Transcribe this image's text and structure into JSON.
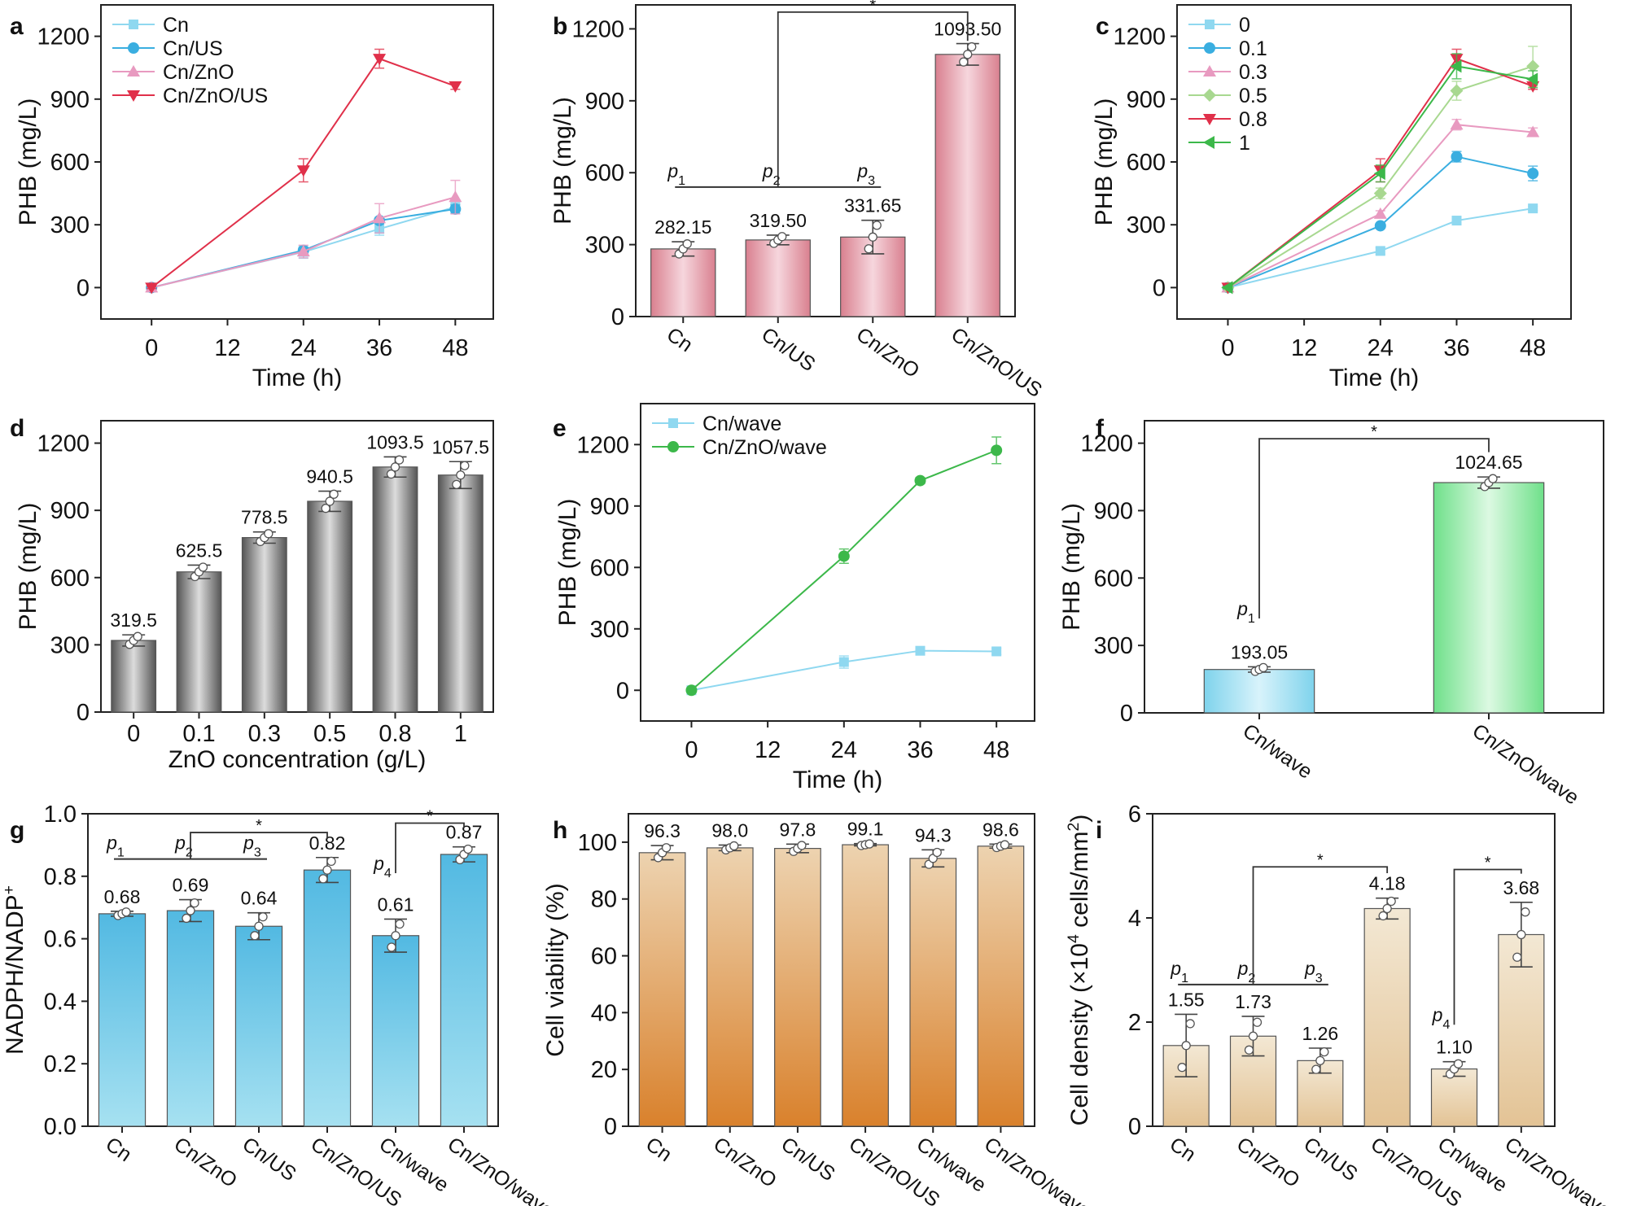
{
  "chart_data": [
    {
      "panel": "a",
      "type": "line",
      "xlabel": "Time (h)",
      "ylabel": "PHB (mg/L)",
      "xlim": [
        -8,
        54
      ],
      "ylim": [
        -150,
        1350
      ],
      "xticks": [
        0,
        12,
        24,
        36,
        48
      ],
      "yticks": [
        0,
        300,
        600,
        900,
        1200
      ],
      "legend_position": "top-left",
      "x": [
        0,
        24,
        36,
        48
      ],
      "series": [
        {
          "name": "Cn",
          "values": [
            0,
            170,
            280,
            385
          ],
          "errors": [
            5,
            30,
            30,
            20
          ],
          "color": "#8fd8f0",
          "marker": "square"
        },
        {
          "name": "Cn/US",
          "values": [
            0,
            178,
            320,
            375
          ],
          "errors": [
            5,
            15,
            15,
            20
          ],
          "color": "#3aaee0",
          "marker": "circle"
        },
        {
          "name": "Cn/ZnO",
          "values": [
            0,
            172,
            331,
            432
          ],
          "errors": [
            5,
            30,
            70,
            80
          ],
          "color": "#e89ac0",
          "marker": "triangle-up"
        },
        {
          "name": "Cn/ZnO/US",
          "values": [
            0,
            560,
            1093,
            962
          ],
          "errors": [
            5,
            55,
            45,
            15
          ],
          "color": "#e0304a",
          "marker": "triangle-down"
        }
      ]
    },
    {
      "panel": "b",
      "type": "bar",
      "xlabel": "",
      "ylabel": "PHB (mg/L)",
      "ylim": [
        0,
        1300
      ],
      "yticks": [
        0,
        300,
        600,
        900,
        1200
      ],
      "categories": [
        "Cn",
        "Cn/US",
        "Cn/ZnO",
        "Cn/ZnO/US"
      ],
      "values": [
        282.15,
        319.5,
        331.65,
        1093.5
      ],
      "errors": [
        30,
        20,
        70,
        45
      ],
      "data_labels": [
        "282.15",
        "319.50",
        "331.65",
        "1093.50"
      ],
      "rotate_labels": true,
      "fill": {
        "edge": "#d9808f",
        "center": "#f6d6dd",
        "direction": "horizontal"
      },
      "p_line": {
        "from": 0,
        "to": 2,
        "y": 540,
        "labels": [
          "p1",
          "p2",
          "p3"
        ]
      },
      "brackets": [
        {
          "from": 1,
          "to": 3,
          "y": 1270,
          "left_to": 540,
          "right_to": 1150,
          "label": "*"
        }
      ]
    },
    {
      "panel": "c",
      "type": "line",
      "xlabel": "Time (h)",
      "ylabel": "PHB (mg/L)",
      "xlim": [
        -8,
        54
      ],
      "ylim": [
        -150,
        1350
      ],
      "xticks": [
        0,
        12,
        24,
        36,
        48
      ],
      "yticks": [
        0,
        300,
        600,
        900,
        1200
      ],
      "legend_position": "top-left",
      "x": [
        0,
        24,
        36,
        48
      ],
      "series": [
        {
          "name": "0",
          "values": [
            0,
            175,
            320,
            378
          ],
          "errors": [
            5,
            15,
            10,
            10
          ],
          "color": "#8fd8f0",
          "marker": "square"
        },
        {
          "name": "0.1",
          "values": [
            0,
            295,
            625,
            545
          ],
          "errors": [
            5,
            10,
            25,
            35
          ],
          "color": "#3aaee0",
          "marker": "circle"
        },
        {
          "name": "0.3",
          "values": [
            0,
            352,
            778,
            742
          ],
          "errors": [
            5,
            15,
            25,
            20
          ],
          "color": "#e89ac0",
          "marker": "triangle-up"
        },
        {
          "name": "0.5",
          "values": [
            0,
            450,
            940,
            1057
          ],
          "errors": [
            5,
            25,
            45,
            95
          ],
          "color": "#a8d890",
          "marker": "diamond"
        },
        {
          "name": "0.8",
          "values": [
            0,
            560,
            1093,
            962
          ],
          "errors": [
            5,
            55,
            45,
            15
          ],
          "color": "#e0304a",
          "marker": "triangle-down"
        },
        {
          "name": "1",
          "values": [
            0,
            545,
            1057,
            995
          ],
          "errors": [
            5,
            40,
            60,
            40
          ],
          "color": "#3cb84a",
          "marker": "triangle-left"
        }
      ]
    },
    {
      "panel": "d",
      "type": "bar",
      "xlabel": "ZnO concentration (g/L)",
      "ylabel": "PHB (mg/L)",
      "ylim": [
        0,
        1300
      ],
      "yticks": [
        0,
        300,
        600,
        900,
        1200
      ],
      "categories": [
        "0",
        "0.1",
        "0.3",
        "0.5",
        "0.8",
        "1"
      ],
      "values": [
        319.5,
        625.5,
        778.5,
        940.5,
        1093.5,
        1057.5
      ],
      "errors": [
        25,
        30,
        25,
        45,
        45,
        60
      ],
      "data_labels": [
        "319.5",
        "625.5",
        "778.5",
        "940.5",
        "1093.5",
        "1057.5"
      ],
      "rotate_labels": false,
      "fill": {
        "edge": "#555555",
        "center": "#dcdcdc",
        "direction": "horizontal"
      }
    },
    {
      "panel": "e",
      "type": "line",
      "xlabel": "Time (h)",
      "ylabel": "PHB (mg/L)",
      "xlim": [
        -8,
        54
      ],
      "ylim": [
        -150,
        1400
      ],
      "xticks": [
        0,
        12,
        24,
        36,
        48
      ],
      "yticks": [
        0,
        300,
        600,
        900,
        1200
      ],
      "legend_position": "top-left",
      "x": [
        0,
        24,
        36,
        48
      ],
      "series": [
        {
          "name": "Cn/wave",
          "values": [
            0,
            138,
            193,
            190
          ],
          "errors": [
            5,
            30,
            8,
            15
          ],
          "color": "#8fd8f0",
          "marker": "square"
        },
        {
          "name": "Cn/ZnO/wave",
          "values": [
            0,
            655,
            1024,
            1172
          ],
          "errors": [
            5,
            35,
            15,
            65
          ],
          "color": "#3cb84a",
          "marker": "circle"
        }
      ]
    },
    {
      "panel": "f",
      "type": "bar",
      "xlabel": "",
      "ylabel": "PHB (mg/L)",
      "ylim": [
        0,
        1300
      ],
      "yticks": [
        0,
        300,
        600,
        900,
        1200
      ],
      "categories": [
        "Cn/wave",
        "Cn/ZnO/wave"
      ],
      "values": [
        193.05,
        1024.65
      ],
      "errors": [
        12,
        25
      ],
      "data_labels": [
        "193.05",
        "1024.65"
      ],
      "rotate_labels": true,
      "bar_fills": [
        {
          "edge": "#7fd3ec",
          "center": "#d8f3fb",
          "direction": "horizontal"
        },
        {
          "edge": "#6fe08a",
          "center": "#dcf9e2",
          "direction": "horizontal"
        }
      ],
      "brackets": [
        {
          "from": 0,
          "to": 1,
          "y": 1220,
          "left_to": 420,
          "right_to": 1160,
          "label": "*",
          "p_label": "p1"
        }
      ]
    },
    {
      "panel": "g",
      "type": "bar",
      "xlabel": "",
      "ylabel": "NADPH/NADP^{+}",
      "ylim": [
        0,
        1.0
      ],
      "yticks": [
        0,
        0.2,
        0.4,
        0.6,
        0.8,
        1.0
      ],
      "ytick_decimals": 1,
      "categories": [
        "Cn",
        "Cn/ZnO",
        "Cn/US",
        "Cn/ZnO/US",
        "Cn/wave",
        "Cn/ZnO/wave"
      ],
      "values": [
        0.68,
        0.69,
        0.64,
        0.82,
        0.61,
        0.87
      ],
      "errors": [
        0.008,
        0.035,
        0.043,
        0.04,
        0.053,
        0.024
      ],
      "data_labels": [
        "0.68",
        "0.69",
        "0.64",
        "0.82",
        "0.61",
        "0.87"
      ],
      "rotate_labels": true,
      "fill": {
        "top": "#52b9e2",
        "bottom": "#a6e1f1",
        "direction": "vertical"
      },
      "p_line": {
        "from": 0,
        "to": 2,
        "y": 0.855,
        "labels": [
          "p1",
          "p2",
          "p3"
        ]
      },
      "brackets": [
        {
          "from": 1,
          "to": 3,
          "y": 0.94,
          "left_to": 0.855,
          "right_to": 0.92,
          "label": "*"
        },
        {
          "from": 4,
          "to": 5,
          "y": 0.97,
          "left_to": 0.81,
          "right_to": 0.955,
          "label": "*",
          "p_label": "p4"
        }
      ]
    },
    {
      "panel": "h",
      "type": "bar",
      "xlabel": "",
      "ylabel": "Cell viability (%)",
      "ylim": [
        0,
        110
      ],
      "yticks": [
        0,
        20,
        40,
        60,
        80,
        100
      ],
      "categories": [
        "Cn",
        "Cn/ZnO",
        "Cn/US",
        "Cn/ZnO/US",
        "Cn/wave",
        "Cn/ZnO/wave"
      ],
      "values": [
        96.3,
        98.0,
        97.8,
        99.1,
        94.3,
        98.6
      ],
      "errors": [
        2.5,
        1.0,
        1.5,
        0.4,
        3.0,
        0.7
      ],
      "data_labels": [
        "96.3",
        "98.0",
        "97.8",
        "99.1",
        "94.3",
        "98.6"
      ],
      "rotate_labels": true,
      "fill": {
        "top": "#edd3b0",
        "bottom": "#d9812c",
        "direction": "vertical"
      }
    },
    {
      "panel": "i",
      "type": "bar",
      "xlabel": "",
      "ylabel": "Cell density (×10^{4} cells/mm^{2})",
      "ylim": [
        0,
        6
      ],
      "yticks": [
        0,
        2,
        4,
        6
      ],
      "categories": [
        "Cn",
        "Cn/ZnO",
        "Cn/US",
        "Cn/ZnO/US",
        "Cn/wave",
        "Cn/ZnO/wave"
      ],
      "values": [
        1.55,
        1.73,
        1.26,
        4.18,
        1.1,
        3.68
      ],
      "errors": [
        0.6,
        0.38,
        0.24,
        0.2,
        0.14,
        0.62
      ],
      "data_labels": [
        "1.55",
        "1.73",
        "1.26",
        "4.18",
        "1.10",
        "3.68"
      ],
      "rotate_labels": true,
      "fill": {
        "top": "#f3e8d4",
        "bottom": "#e3c395",
        "direction": "vertical"
      },
      "p_line": {
        "from": 0,
        "to": 2,
        "y": 2.72,
        "labels": [
          "p1",
          "p2",
          "p3"
        ]
      },
      "brackets": [
        {
          "from": 1,
          "to": 3,
          "y": 4.98,
          "left_to": 2.72,
          "right_to": 4.86,
          "label": "*"
        },
        {
          "from": 4,
          "to": 5,
          "y": 4.93,
          "left_to": 1.95,
          "right_to": 4.85,
          "label": "*",
          "p_label": "p4"
        }
      ]
    }
  ]
}
